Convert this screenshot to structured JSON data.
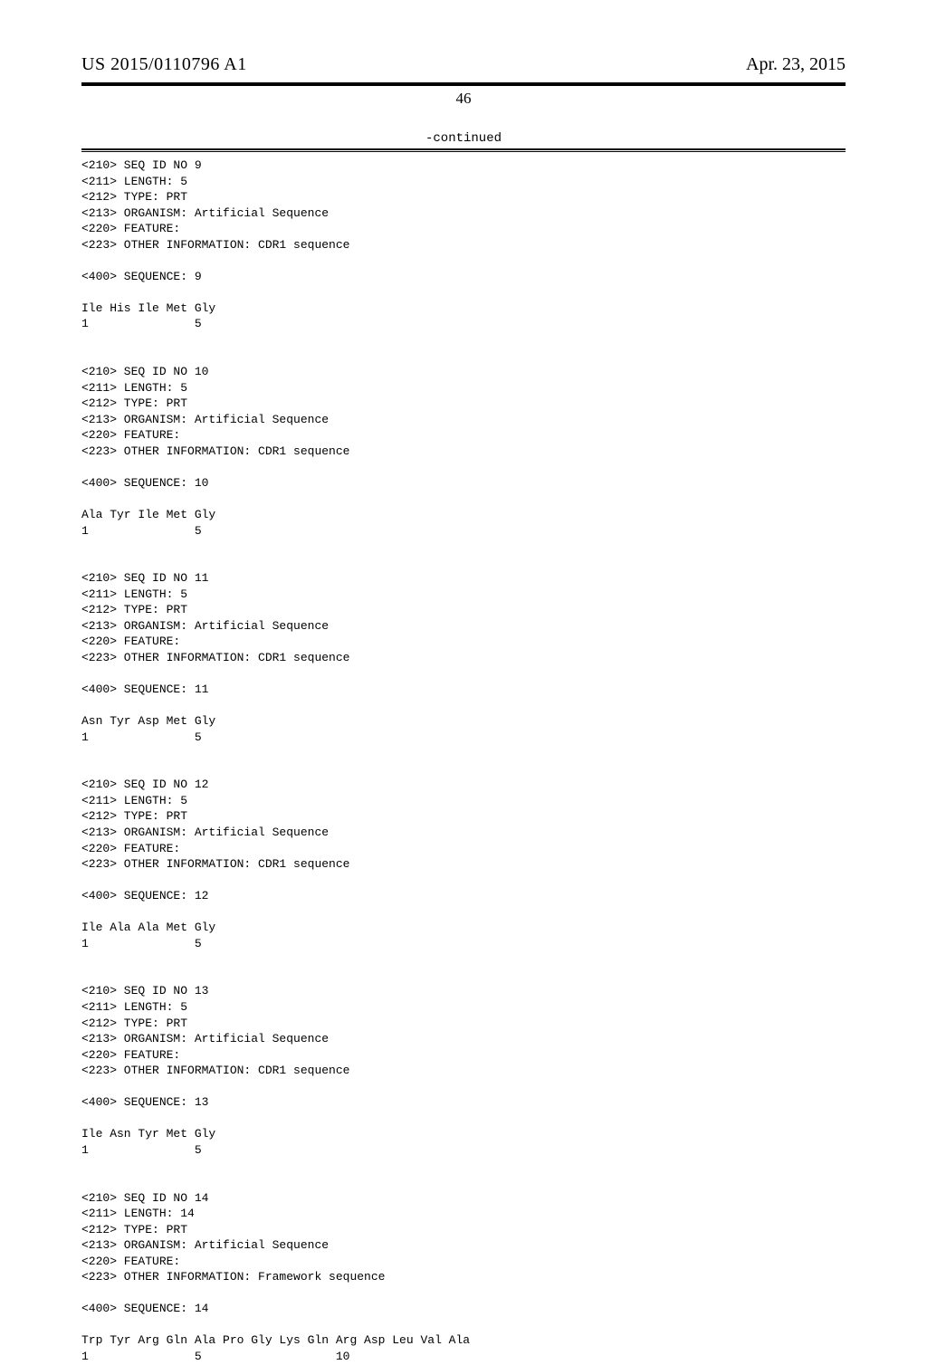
{
  "header": {
    "publication_number": "US 2015/0110796 A1",
    "date": "Apr. 23, 2015"
  },
  "page_number": "46",
  "continued_label": "-continued",
  "sequences": [
    {
      "lines": [
        "<210> SEQ ID NO 9",
        "<211> LENGTH: 5",
        "<212> TYPE: PRT",
        "<213> ORGANISM: Artificial Sequence",
        "<220> FEATURE:",
        "<223> OTHER INFORMATION: CDR1 sequence",
        "",
        "<400> SEQUENCE: 9",
        "",
        "Ile His Ile Met Gly",
        "1               5"
      ]
    },
    {
      "lines": [
        "<210> SEQ ID NO 10",
        "<211> LENGTH: 5",
        "<212> TYPE: PRT",
        "<213> ORGANISM: Artificial Sequence",
        "<220> FEATURE:",
        "<223> OTHER INFORMATION: CDR1 sequence",
        "",
        "<400> SEQUENCE: 10",
        "",
        "Ala Tyr Ile Met Gly",
        "1               5"
      ]
    },
    {
      "lines": [
        "<210> SEQ ID NO 11",
        "<211> LENGTH: 5",
        "<212> TYPE: PRT",
        "<213> ORGANISM: Artificial Sequence",
        "<220> FEATURE:",
        "<223> OTHER INFORMATION: CDR1 sequence",
        "",
        "<400> SEQUENCE: 11",
        "",
        "Asn Tyr Asp Met Gly",
        "1               5"
      ]
    },
    {
      "lines": [
        "<210> SEQ ID NO 12",
        "<211> LENGTH: 5",
        "<212> TYPE: PRT",
        "<213> ORGANISM: Artificial Sequence",
        "<220> FEATURE:",
        "<223> OTHER INFORMATION: CDR1 sequence",
        "",
        "<400> SEQUENCE: 12",
        "",
        "Ile Ala Ala Met Gly",
        "1               5"
      ]
    },
    {
      "lines": [
        "<210> SEQ ID NO 13",
        "<211> LENGTH: 5",
        "<212> TYPE: PRT",
        "<213> ORGANISM: Artificial Sequence",
        "<220> FEATURE:",
        "<223> OTHER INFORMATION: CDR1 sequence",
        "",
        "<400> SEQUENCE: 13",
        "",
        "Ile Asn Tyr Met Gly",
        "1               5"
      ]
    },
    {
      "lines": [
        "<210> SEQ ID NO 14",
        "<211> LENGTH: 14",
        "<212> TYPE: PRT",
        "<213> ORGANISM: Artificial Sequence",
        "<220> FEATURE:",
        "<223> OTHER INFORMATION: Framework sequence",
        "",
        "<400> SEQUENCE: 14",
        "",
        "Trp Tyr Arg Gln Ala Pro Gly Lys Gln Arg Asp Leu Val Ala",
        "1               5                   10"
      ]
    }
  ]
}
